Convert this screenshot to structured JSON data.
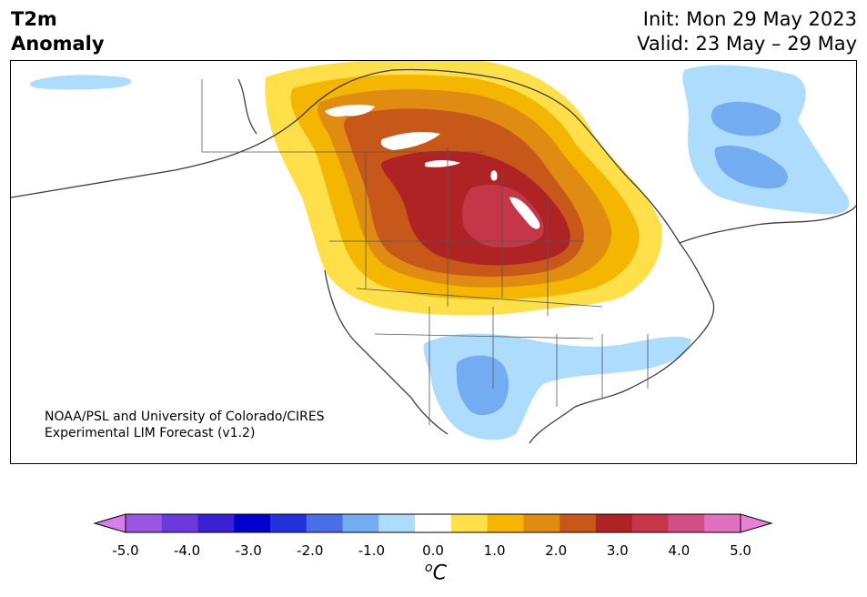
{
  "title": {
    "line1": "T2m",
    "line2": "Anomaly"
  },
  "dates": {
    "init": "Init: Mon 29 May 2023",
    "valid": "Valid: 23 May – 29 May"
  },
  "credit": {
    "line1": "NOAA/PSL and University of Colorado/CIRES",
    "line2": "Experimental LIM Forecast (v1.2)"
  },
  "colorbar": {
    "unit_symbol": "o",
    "unit_letter": "C",
    "tick_labels": [
      "-5.0",
      "-4.0",
      "-3.0",
      "-2.0",
      "-1.0",
      "0.0",
      "1.0",
      "2.0",
      "3.0",
      "4.0",
      "5.0"
    ],
    "colors": [
      "#d77ee8",
      "#9b55e0",
      "#6a3adc",
      "#3c20d4",
      "#0000cc",
      "#2233dd",
      "#4a6ee8",
      "#74acf2",
      "#aedcfc",
      "#ffffff",
      "#ffe04a",
      "#f4b600",
      "#e08c12",
      "#c8581a",
      "#b02324",
      "#c43648",
      "#d24e86",
      "#e070c0",
      "#e880d4"
    ]
  }
}
